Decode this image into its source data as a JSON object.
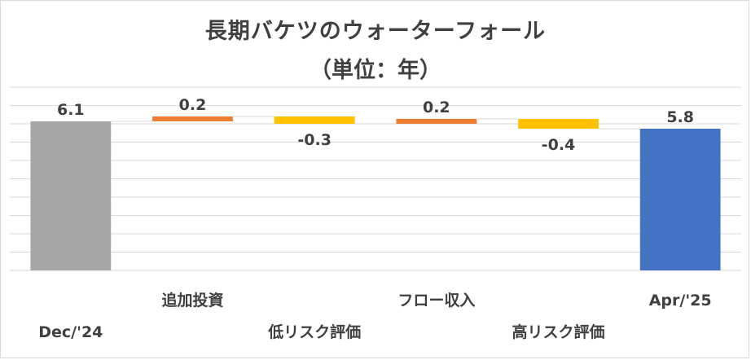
{
  "chart_data": {
    "type": "bar",
    "subtype": "waterfall",
    "title": "長期バケツのウォーターフォール",
    "subtitle": "（単位：年）",
    "categories": [
      "Dec/'24",
      "追加投資",
      "低リスク評価",
      "フロー収入",
      "高リスク評価",
      "Apr/'25"
    ],
    "values": [
      6.1,
      0.2,
      -0.3,
      0.2,
      -0.4,
      5.8
    ],
    "value_labels": [
      "6.1",
      "0.2",
      "-0.3",
      "0.2",
      "-0.4",
      "5.8"
    ],
    "bar_kinds": [
      "total",
      "increase",
      "decrease",
      "increase",
      "decrease",
      "total"
    ],
    "ylim": [
      0,
      7.5
    ],
    "grid": true,
    "legend": "none",
    "colors": {
      "start_total": "#a6a6a6",
      "increase": "#ed7d31",
      "decrease": "#ffc000",
      "end_total": "#4472c4",
      "grid": "#d9d9d9",
      "connector": "#d9d9d9",
      "text": "#404040"
    }
  }
}
